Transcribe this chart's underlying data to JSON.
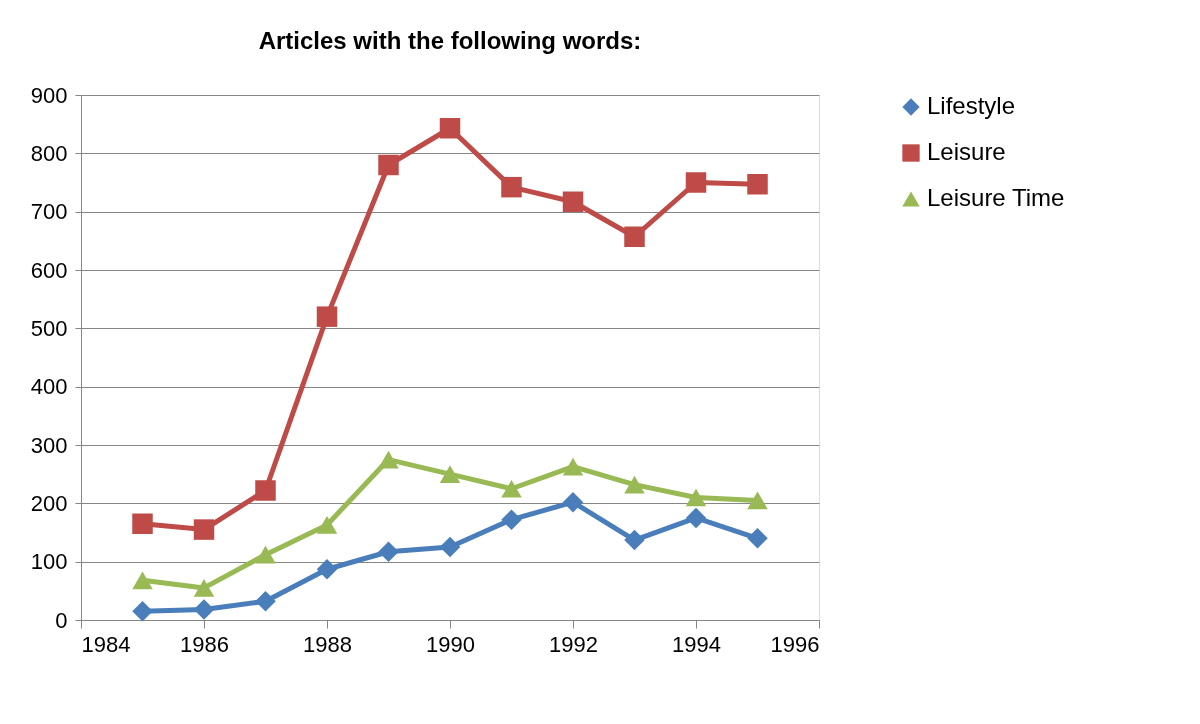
{
  "chart_data": {
    "type": "line",
    "title": "Articles with the following words:",
    "x": [
      1985,
      1986,
      1987,
      1988,
      1989,
      1990,
      1991,
      1992,
      1993,
      1994,
      1995
    ],
    "series": [
      {
        "name": "Lifestyle",
        "color": "#4a7ebb",
        "marker": "diamond",
        "values": [
          15,
          18,
          32,
          87,
          117,
          125,
          172,
          202,
          137,
          175,
          140
        ]
      },
      {
        "name": "Leisure",
        "color": "#be4b48",
        "marker": "square",
        "values": [
          165,
          155,
          222,
          520,
          780,
          843,
          742,
          717,
          657,
          750,
          747
        ]
      },
      {
        "name": "Leisure Time",
        "color": "#98b954",
        "marker": "triangle",
        "values": [
          68,
          55,
          112,
          163,
          275,
          250,
          225,
          263,
          232,
          210,
          205
        ]
      }
    ],
    "xlim": [
      1984,
      1996
    ],
    "xticks": [
      1984,
      1986,
      1988,
      1990,
      1992,
      1994,
      1996
    ],
    "ylim": [
      0,
      900
    ],
    "yticks": [
      0,
      100,
      200,
      300,
      400,
      500,
      600,
      700,
      800,
      900
    ],
    "grid": "y",
    "legend": "right"
  }
}
